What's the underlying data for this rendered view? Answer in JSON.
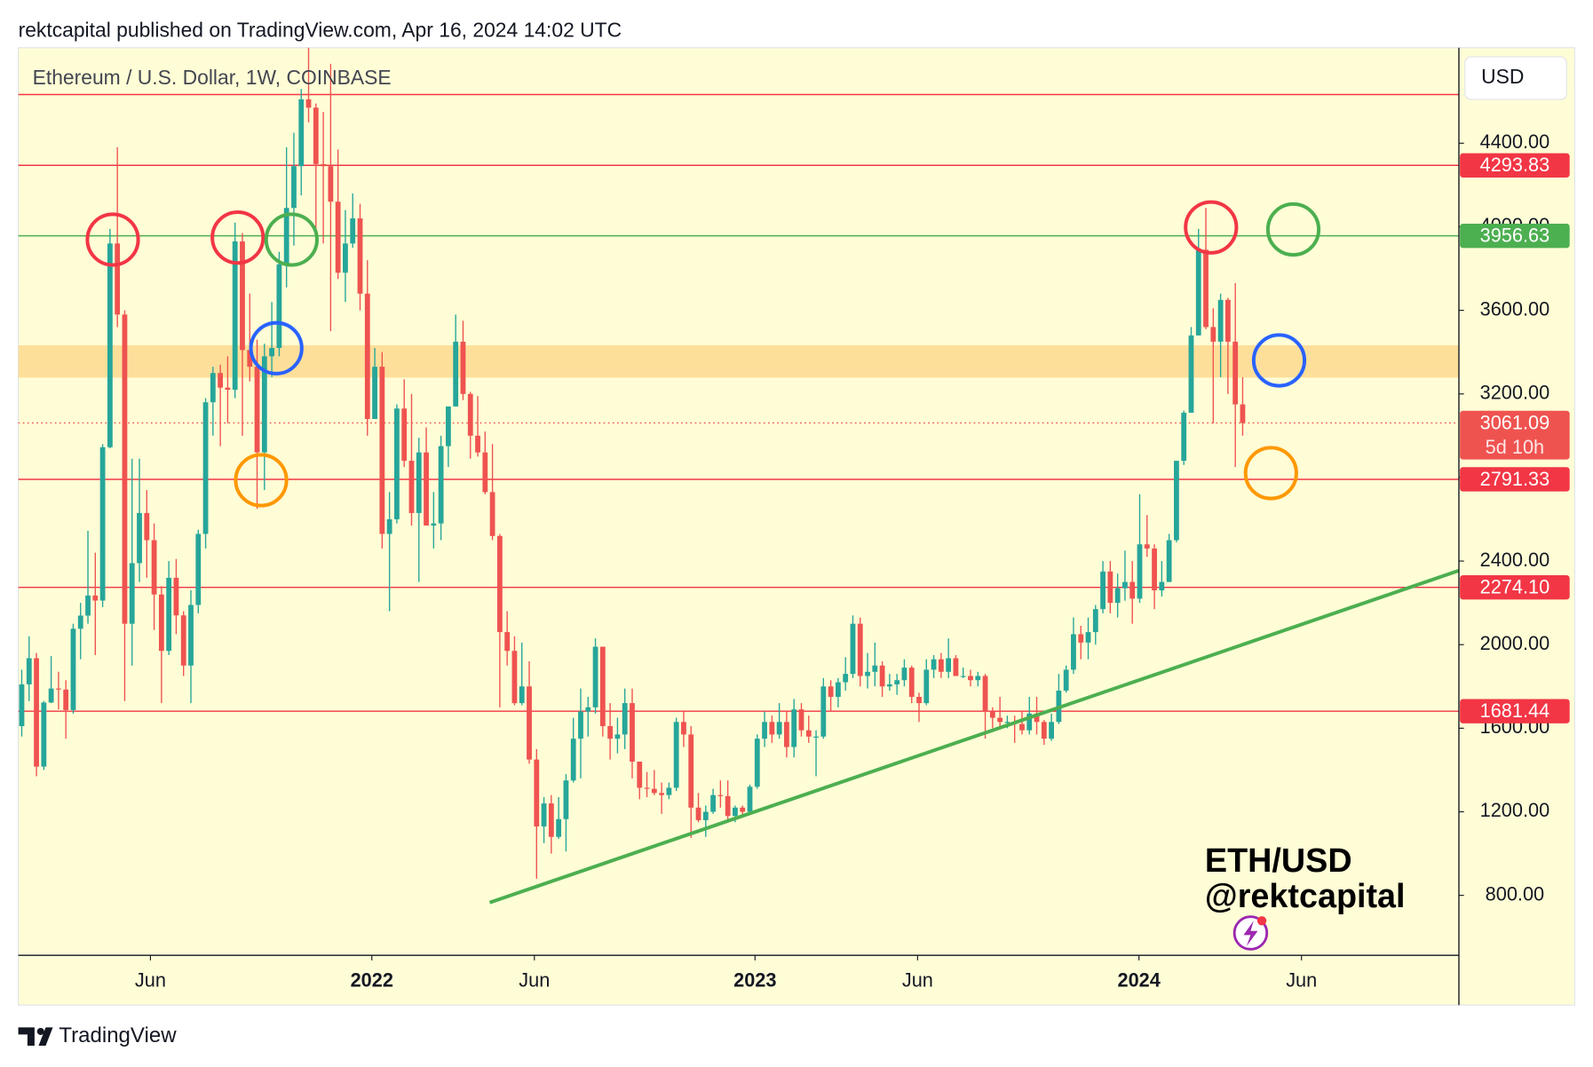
{
  "chart_data": {
    "type": "candlestick",
    "header": "rektcapital published on TradingView.com, Apr 16, 2024 14:02 UTC",
    "title": "Ethereum / U.S. Dollar, 1W, COINBASE",
    "currency": "USD",
    "annotations": [
      "ETH/USD",
      "@rektcapital"
    ],
    "footer": "TradingView",
    "up_color": "#26a69a",
    "down_color": "#ef5350",
    "grid": false,
    "categories": [
      null,
      null,
      null,
      null,
      null,
      null,
      null,
      null,
      null,
      null,
      null,
      null,
      null,
      null,
      null,
      null,
      null,
      null,
      null,
      null,
      null,
      null,
      null,
      null,
      null,
      null,
      null,
      null,
      null,
      null,
      null,
      null,
      null,
      null,
      null,
      null,
      null,
      null,
      null,
      null,
      null,
      null,
      null,
      null,
      null,
      null,
      null,
      null,
      null,
      null,
      null,
      null,
      null,
      null,
      null,
      null,
      null,
      null,
      null,
      null,
      null,
      null,
      null,
      null,
      null,
      null,
      null,
      null,
      null,
      null,
      null,
      null,
      null,
      null,
      null,
      null,
      null,
      null,
      null,
      null,
      null,
      null,
      null,
      null,
      null,
      null,
      null,
      null,
      null,
      null,
      null,
      null,
      null,
      null,
      null,
      null,
      null,
      null,
      null,
      null,
      null,
      null,
      null,
      null,
      null,
      null,
      null,
      null,
      null,
      null,
      null,
      null,
      null,
      null,
      null,
      null,
      null,
      null,
      null,
      null,
      null,
      null,
      null,
      null,
      null,
      null,
      null,
      null,
      null,
      null,
      null,
      null,
      null,
      null,
      null,
      null,
      null,
      null,
      null,
      null,
      null,
      null,
      null,
      null,
      null,
      null,
      null,
      null,
      null,
      null,
      null,
      null,
      null,
      null,
      null,
      null,
      null,
      null,
      null,
      null,
      null,
      null,
      null,
      null,
      null,
      null,
      null
    ],
    "candles": [
      [
        1610,
        1880,
        1560,
        1810
      ],
      [
        1810,
        2040,
        1730,
        1935
      ],
      [
        1935,
        1960,
        1370,
        1416
      ],
      [
        1416,
        1730,
        1400,
        1723
      ],
      [
        1723,
        1945,
        1720,
        1790
      ],
      [
        1790,
        1870,
        1690,
        1785
      ],
      [
        1785,
        1830,
        1550,
        1687
      ],
      [
        1687,
        2100,
        1670,
        2076
      ],
      [
        2076,
        2200,
        1930,
        2139
      ],
      [
        2139,
        2545,
        2100,
        2235
      ],
      [
        2235,
        2440,
        1950,
        2211
      ],
      [
        2211,
        2960,
        2180,
        2945
      ],
      [
        2945,
        3990,
        2940,
        3920
      ],
      [
        3920,
        4380,
        3520,
        3580
      ],
      [
        3580,
        3600,
        1730,
        2100
      ],
      [
        2100,
        2890,
        1900,
        2390
      ],
      [
        2390,
        2890,
        2300,
        2630
      ],
      [
        2630,
        2740,
        2320,
        2500
      ],
      [
        2500,
        2580,
        2070,
        2240
      ],
      [
        2240,
        2280,
        1720,
        1970
      ],
      [
        1970,
        2400,
        1950,
        2320
      ],
      [
        2320,
        2410,
        2050,
        2140
      ],
      [
        2140,
        2160,
        1850,
        1900
      ],
      [
        1900,
        2260,
        1720,
        2190
      ],
      [
        2190,
        2550,
        2150,
        2530
      ],
      [
        2530,
        3180,
        2460,
        3160
      ],
      [
        3160,
        3330,
        3000,
        3300
      ],
      [
        3300,
        3340,
        2950,
        3230
      ],
      [
        3230,
        3380,
        3060,
        3220
      ],
      [
        3220,
        4020,
        3180,
        3930
      ],
      [
        3930,
        3970,
        3000,
        3410
      ],
      [
        3410,
        3680,
        3260,
        3330
      ],
      [
        3330,
        3460,
        2650,
        2920
      ],
      [
        2920,
        3440,
        2740,
        3380
      ],
      [
        3380,
        3640,
        3280,
        3420
      ],
      [
        3420,
        3880,
        3380,
        3820
      ],
      [
        3820,
        4380,
        3710,
        4090
      ],
      [
        4090,
        4450,
        3910,
        4290
      ],
      [
        4290,
        4660,
        4150,
        4610
      ],
      [
        4610,
        4870,
        4500,
        4570
      ],
      [
        4570,
        4590,
        3990,
        4300
      ],
      [
        4300,
        4550,
        3920,
        4290
      ],
      [
        4290,
        4780,
        3500,
        4120
      ],
      [
        4120,
        4370,
        3750,
        3780
      ],
      [
        3780,
        4080,
        3640,
        3920
      ],
      [
        3920,
        4160,
        3900,
        4040
      ],
      [
        4040,
        4110,
        3600,
        3680
      ],
      [
        3680,
        3840,
        3000,
        3080
      ],
      [
        3080,
        3420,
        3080,
        3330
      ],
      [
        3330,
        3400,
        2460,
        2530
      ],
      [
        2530,
        2730,
        2160,
        2600
      ],
      [
        2600,
        3150,
        2580,
        3130
      ],
      [
        3130,
        3270,
        2850,
        2880
      ],
      [
        2880,
        3200,
        2570,
        2630
      ],
      [
        2630,
        2990,
        2300,
        2920
      ],
      [
        2920,
        3040,
        2570,
        2570
      ],
      [
        2570,
        2730,
        2460,
        2580
      ],
      [
        2580,
        3000,
        2500,
        2950
      ],
      [
        2950,
        3140,
        2850,
        3140
      ],
      [
        3140,
        3580,
        3140,
        3450
      ],
      [
        3450,
        3550,
        3170,
        3200
      ],
      [
        3200,
        3210,
        2890,
        3000
      ],
      [
        3000,
        3190,
        2900,
        2920
      ],
      [
        2920,
        3020,
        2720,
        2730
      ],
      [
        2730,
        2960,
        2500,
        2520
      ],
      [
        2520,
        2530,
        1700,
        2060
      ],
      [
        2060,
        2160,
        1900,
        1970
      ],
      [
        1970,
        2040,
        1710,
        1720
      ],
      [
        1720,
        2010,
        1710,
        1800
      ],
      [
        1800,
        1920,
        1430,
        1450
      ],
      [
        1450,
        1500,
        880,
        1130
      ],
      [
        1130,
        1270,
        1050,
        1240
      ],
      [
        1240,
        1280,
        1000,
        1080
      ],
      [
        1080,
        1270,
        1070,
        1165
      ],
      [
        1165,
        1380,
        1010,
        1350
      ],
      [
        1350,
        1650,
        1340,
        1550
      ],
      [
        1550,
        1790,
        1360,
        1680
      ],
      [
        1680,
        1750,
        1560,
        1700
      ],
      [
        1700,
        2030,
        1670,
        1990
      ],
      [
        1990,
        1990,
        1560,
        1610
      ],
      [
        1610,
        1720,
        1450,
        1550
      ],
      [
        1550,
        1650,
        1480,
        1570
      ],
      [
        1570,
        1790,
        1500,
        1720
      ],
      [
        1720,
        1790,
        1360,
        1440
      ],
      [
        1440,
        1440,
        1260,
        1315
      ],
      [
        1315,
        1390,
        1270,
        1310
      ],
      [
        1310,
        1400,
        1280,
        1290
      ],
      [
        1290,
        1340,
        1190,
        1280
      ],
      [
        1280,
        1340,
        1260,
        1315
      ],
      [
        1315,
        1650,
        1300,
        1630
      ],
      [
        1630,
        1680,
        1510,
        1570
      ],
      [
        1570,
        1610,
        1075,
        1220
      ],
      [
        1220,
        1290,
        1150,
        1160
      ],
      [
        1160,
        1230,
        1080,
        1200
      ],
      [
        1200,
        1310,
        1190,
        1280
      ],
      [
        1280,
        1350,
        1220,
        1275
      ],
      [
        1275,
        1350,
        1160,
        1180
      ],
      [
        1180,
        1230,
        1150,
        1220
      ],
      [
        1220,
        1230,
        1180,
        1200
      ],
      [
        1200,
        1330,
        1190,
        1320
      ],
      [
        1320,
        1570,
        1310,
        1550
      ],
      [
        1550,
        1680,
        1510,
        1630
      ],
      [
        1630,
        1660,
        1530,
        1570
      ],
      [
        1570,
        1720,
        1550,
        1630
      ],
      [
        1630,
        1680,
        1460,
        1510
      ],
      [
        1510,
        1740,
        1460,
        1690
      ],
      [
        1690,
        1720,
        1560,
        1590
      ],
      [
        1590,
        1660,
        1530,
        1560
      ],
      [
        1560,
        1590,
        1370,
        1560
      ],
      [
        1560,
        1840,
        1550,
        1800
      ],
      [
        1800,
        1830,
        1680,
        1750
      ],
      [
        1750,
        1840,
        1700,
        1820
      ],
      [
        1820,
        1940,
        1780,
        1860
      ],
      [
        1860,
        2140,
        1840,
        2100
      ],
      [
        2100,
        2130,
        1800,
        1850
      ],
      [
        1850,
        1960,
        1790,
        1870
      ],
      [
        1870,
        2010,
        1800,
        1900
      ],
      [
        1900,
        1920,
        1750,
        1800
      ],
      [
        1800,
        1860,
        1780,
        1810
      ],
      [
        1810,
        1860,
        1760,
        1830
      ],
      [
        1830,
        1930,
        1800,
        1890
      ],
      [
        1890,
        1900,
        1720,
        1750
      ],
      [
        1750,
        1770,
        1630,
        1720
      ],
      [
        1720,
        1930,
        1710,
        1880
      ],
      [
        1880,
        1950,
        1840,
        1930
      ],
      [
        1930,
        1960,
        1840,
        1870
      ],
      [
        1870,
        2030,
        1840,
        1935
      ],
      [
        1935,
        1950,
        1850,
        1850
      ],
      [
        1850,
        1890,
        1840,
        1850
      ],
      [
        1850,
        1880,
        1800,
        1830
      ],
      [
        1830,
        1870,
        1800,
        1850
      ],
      [
        1850,
        1860,
        1550,
        1680
      ],
      [
        1680,
        1700,
        1600,
        1650
      ],
      [
        1650,
        1750,
        1600,
        1630
      ],
      [
        1630,
        1660,
        1600,
        1630
      ],
      [
        1630,
        1660,
        1530,
        1620
      ],
      [
        1620,
        1680,
        1570,
        1590
      ],
      [
        1590,
        1750,
        1570,
        1670
      ],
      [
        1670,
        1750,
        1570,
        1630
      ],
      [
        1630,
        1640,
        1520,
        1550
      ],
      [
        1550,
        1670,
        1540,
        1630
      ],
      [
        1630,
        1860,
        1620,
        1780
      ],
      [
        1780,
        1900,
        1770,
        1880
      ],
      [
        1880,
        2130,
        1860,
        2050
      ],
      [
        2050,
        2090,
        1930,
        2010
      ],
      [
        2010,
        2130,
        1930,
        2060
      ],
      [
        2060,
        2190,
        2000,
        2170
      ],
      [
        2170,
        2400,
        2150,
        2350
      ],
      [
        2350,
        2400,
        2150,
        2200
      ],
      [
        2200,
        2340,
        2130,
        2270
      ],
      [
        2270,
        2450,
        2210,
        2300
      ],
      [
        2300,
        2400,
        2100,
        2220
      ],
      [
        2220,
        2720,
        2200,
        2480
      ],
      [
        2480,
        2620,
        2420,
        2460
      ],
      [
        2460,
        2480,
        2170,
        2260
      ],
      [
        2260,
        2400,
        2230,
        2300
      ],
      [
        2300,
        2530,
        2300,
        2500
      ],
      [
        2500,
        2880,
        2490,
        2880
      ],
      [
        2880,
        3120,
        2860,
        3110
      ],
      [
        3110,
        3520,
        3110,
        3480
      ],
      [
        3480,
        3990,
        3480,
        3890
      ],
      [
        3890,
        4090,
        3510,
        3520
      ],
      [
        3520,
        3610,
        3060,
        3450
      ],
      [
        3450,
        3680,
        3280,
        3650
      ],
      [
        3650,
        3660,
        3200,
        3450
      ],
      [
        3450,
        3730,
        2850,
        3150
      ],
      [
        3150,
        3280,
        3000,
        3061
      ]
    ],
    "xlim": [
      -0.47,
      195.4
    ],
    "xticks": [
      {
        "value": 17.5,
        "label": "Jun"
      },
      {
        "value": 47.6,
        "label": "2022"
      },
      {
        "value": 69.7,
        "label": "Jun"
      },
      {
        "value": 99.7,
        "label": "2023"
      },
      {
        "value": 121.8,
        "label": "Jun"
      },
      {
        "value": 151.9,
        "label": "2024"
      },
      {
        "value": 174.0,
        "label": "Jun"
      }
    ],
    "ylim": [
      513,
      4857
    ],
    "yticks": [
      {
        "value": 800,
        "label": "800.00"
      },
      {
        "value": 1200,
        "label": "1200.00"
      },
      {
        "value": 1600,
        "label": "1600.00"
      },
      {
        "value": 2000,
        "label": "2000.00"
      },
      {
        "value": 2400,
        "label": "2400.00"
      },
      {
        "value": 2800,
        "label": "2800.00"
      },
      {
        "value": 3200,
        "label": "3200.00"
      },
      {
        "value": 3600,
        "label": "3600.00"
      },
      {
        "value": 4000,
        "label": "4000.00"
      },
      {
        "value": 4400,
        "label": "4400.00"
      }
    ],
    "zone": [
      3278,
      3433
    ],
    "zone_color": "#fedb94",
    "top_line": 4633,
    "levels": [
      {
        "value": 4293.83,
        "label": "4293.83",
        "color": "#f23645"
      },
      {
        "value": 3956.63,
        "label": "3956.63",
        "color": "#4caf50"
      },
      {
        "value": 2791.33,
        "label": "2791.33",
        "color": "#f23645"
      },
      {
        "value": 2274.1,
        "label": "2274.10",
        "color": "#f23645"
      },
      {
        "value": 1681.44,
        "label": "1681.44",
        "color": "#f23645"
      }
    ],
    "last_price": {
      "value": 3061.09,
      "label": "3061.09"
    },
    "countdown": "5d 10h",
    "line_color": "#f23645"
  }
}
